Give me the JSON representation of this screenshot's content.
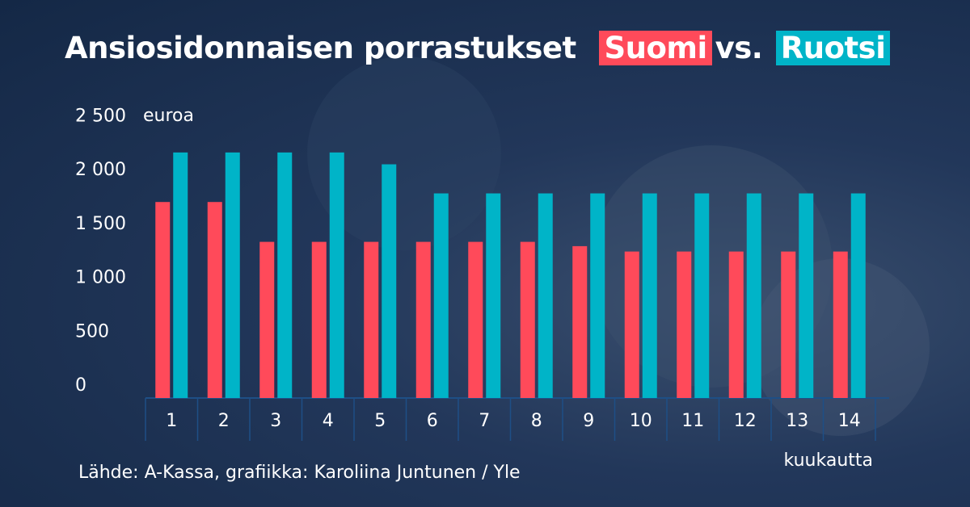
{
  "chart_data": {
    "type": "bar",
    "title": "Ansiosidonnaisen porrastukset",
    "title_joiner": "vs.",
    "y_unit": "euroa",
    "x_label": "kuukautta",
    "source": "Lähde: A-Kassa, grafiikka: Karoliina Juntunen / Yle",
    "categories": [
      "1",
      "2",
      "3",
      "4",
      "5",
      "6",
      "7",
      "8",
      "9",
      "10",
      "11",
      "12",
      "13",
      "14"
    ],
    "series": [
      {
        "name": "Suomi",
        "color": "#ff4a5a",
        "values": [
          1820,
          1820,
          1450,
          1450,
          1450,
          1450,
          1450,
          1450,
          1410,
          1360,
          1360,
          1360,
          1360,
          1360
        ]
      },
      {
        "name": "Ruotsi",
        "color": "#00b4c8",
        "values": [
          2280,
          2280,
          2280,
          2280,
          2170,
          1900,
          1900,
          1900,
          1900,
          1900,
          1900,
          1900,
          1900,
          1900
        ]
      }
    ],
    "ylim": [
      0,
      2600
    ],
    "yticks": [
      0,
      500,
      {
        "value": 1000,
        "label": "1 000"
      },
      {
        "value": 1500,
        "label": "1 500"
      },
      {
        "value": 2000,
        "label": "2 000"
      },
      {
        "value": 2500,
        "label": "2 500"
      }
    ],
    "grid": false
  }
}
